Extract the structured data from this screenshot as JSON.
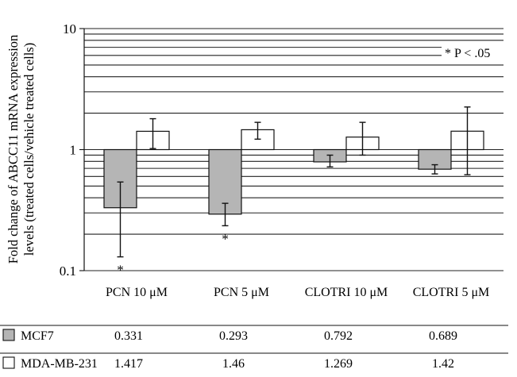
{
  "chart_data": {
    "type": "bar",
    "ylabel_line1": "Fold change of ABCC11 mRNA expression",
    "ylabel_line2": "levels (treated cells/vehicle treated cells)",
    "yscale": "log",
    "ylim": [
      0.1,
      10
    ],
    "yticks": [
      "0.1",
      "1",
      "10"
    ],
    "baseline": 1,
    "categories": [
      "PCN 10 μM",
      "PCN 5 μM",
      "CLOTRI 10 μM",
      "CLOTRI 5 μM"
    ],
    "series": [
      {
        "name": "MCF7",
        "color": "#b5b5b5",
        "values": [
          0.331,
          0.293,
          0.792,
          0.689
        ],
        "value_labels": [
          "0.331",
          "0.293",
          "0.792",
          "0.689"
        ],
        "err_low": [
          0.13,
          0.235,
          0.72,
          0.63
        ],
        "err_high": [
          0.54,
          0.36,
          0.9,
          0.75
        ],
        "significant": [
          true,
          true,
          false,
          false
        ]
      },
      {
        "name": "MDA-MB-231",
        "color": "#ffffff",
        "values": [
          1.417,
          1.46,
          1.269,
          1.42
        ],
        "value_labels": [
          "1.417",
          "1.46",
          "1.269",
          "1.42"
        ],
        "err_low": [
          1.02,
          1.22,
          0.9,
          0.62
        ],
        "err_high": [
          1.8,
          1.68,
          1.68,
          2.25
        ],
        "significant": [
          false,
          false,
          false,
          false
        ]
      }
    ],
    "significance_marker": "*",
    "annotation": "* P < .05"
  }
}
